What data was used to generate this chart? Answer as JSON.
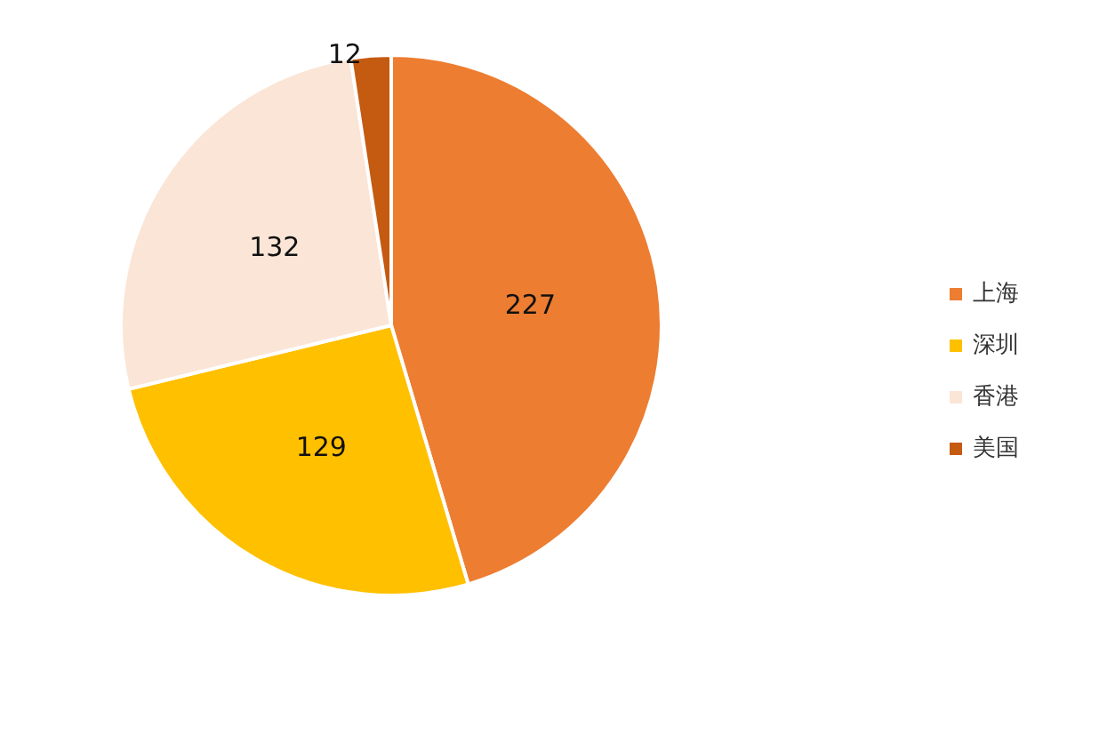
{
  "chart_data": {
    "type": "pie",
    "categories": [
      "上海",
      "深圳",
      "香港",
      "美国"
    ],
    "values": [
      227,
      129,
      132,
      12
    ],
    "colors": [
      "#ed7d31",
      "#ffc000",
      "#fbe5d6",
      "#c55a11"
    ],
    "data_labels": true,
    "legend": "right"
  }
}
